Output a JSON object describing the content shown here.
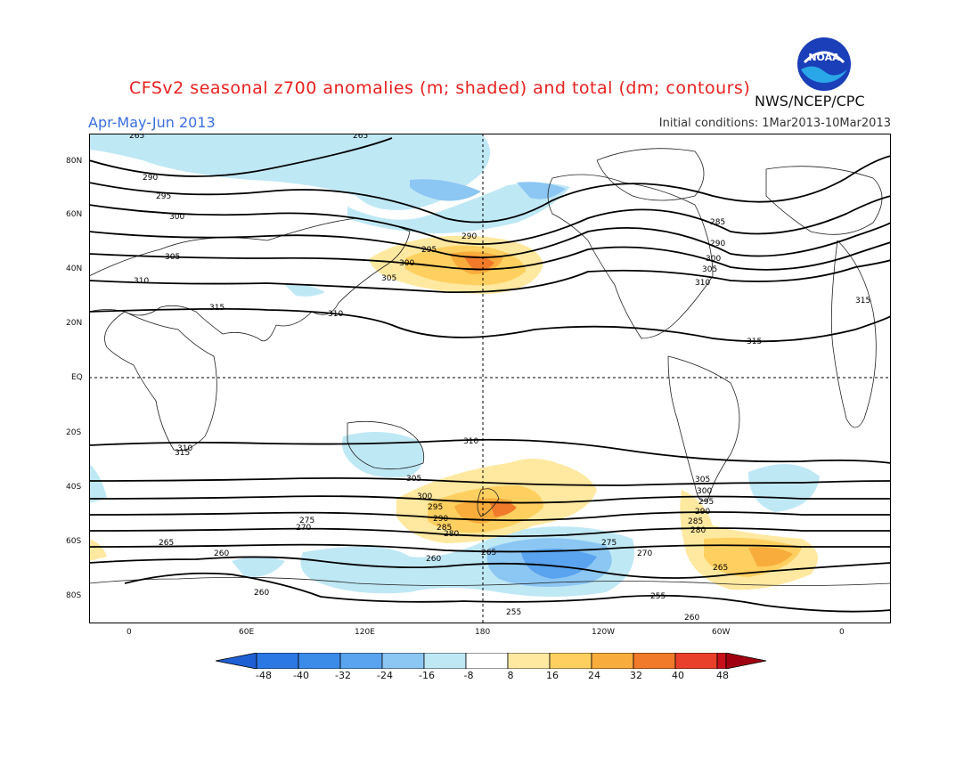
{
  "title": "CFSv2 seasonal z700 anomalies (m; shaded) and total (dm; contours)",
  "period": "Apr-May-Jun 2013",
  "initial_conditions": "Initial conditions: 1Mar2013-10Mar2013",
  "agency": "NWS/NCEP/CPC",
  "logo_text": "NOAA",
  "lat_labels": [
    "80N",
    "60N",
    "40N",
    "20N",
    "EQ",
    "20S",
    "40S",
    "60S",
    "80S"
  ],
  "lon_labels": [
    "0",
    "60E",
    "120E",
    "180",
    "120W",
    "60W",
    "0"
  ],
  "colorbar": {
    "labels": [
      "-48",
      "-40",
      "-32",
      "-24",
      "-16",
      "-8",
      "8",
      "16",
      "24",
      "32",
      "40",
      "48"
    ],
    "colors": [
      "#1e5fd4",
      "#2b78e4",
      "#3b8be8",
      "#5aa3ee",
      "#8cc6f3",
      "#bfe8f5",
      "#ffffff",
      "#ffe8a0",
      "#ffd060",
      "#f8ac3c",
      "#f07a2a",
      "#e8402a",
      "#c8101a",
      "#a00010"
    ]
  },
  "contour_labels": [
    "265",
    "265",
    "290",
    "295",
    "300",
    "305",
    "310",
    "315",
    "315",
    "310",
    "305",
    "300",
    "295",
    "290",
    "285",
    "290",
    "300",
    "305",
    "310",
    "315",
    "310",
    "305",
    "300",
    "295",
    "290",
    "285",
    "280",
    "275",
    "270",
    "265",
    "260",
    "255",
    "260",
    "265",
    "310",
    "315",
    "305",
    "300",
    "295",
    "290",
    "285",
    "280",
    "275",
    "270",
    "265",
    "260",
    "255",
    "260"
  ]
}
